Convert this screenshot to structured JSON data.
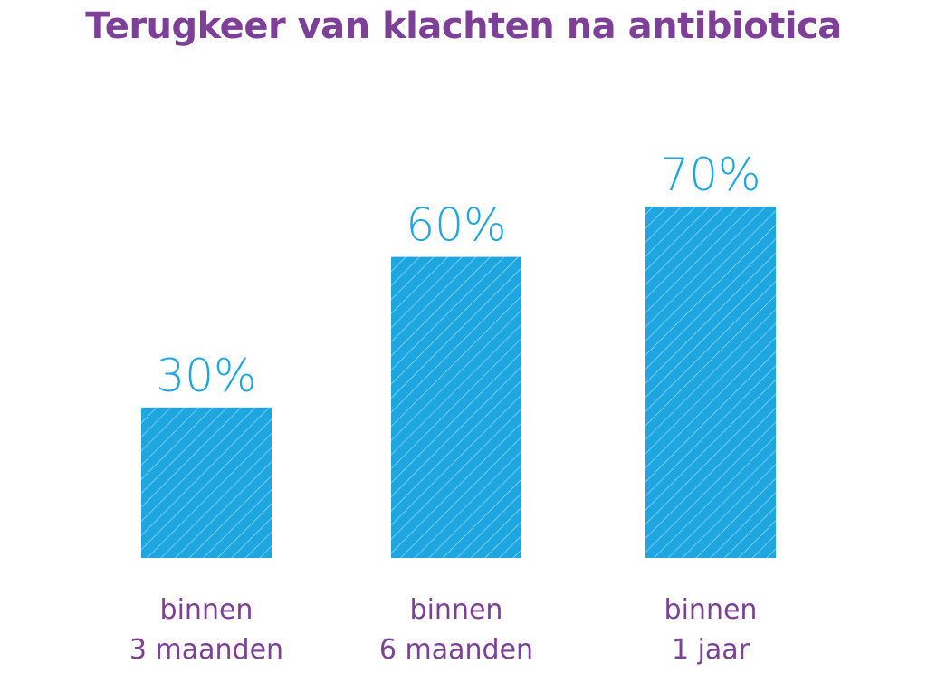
{
  "chart_data": {
    "type": "bar",
    "title": "Terugkeer van klachten na antibiotica",
    "categories": [
      [
        "binnen",
        "3 maanden"
      ],
      [
        "binnen",
        "6 maanden"
      ],
      [
        "binnen",
        "1 jaar"
      ]
    ],
    "values": [
      30,
      60,
      70
    ],
    "value_labels": [
      "30%",
      "60%",
      "70%"
    ],
    "ylim": [
      0,
      100
    ],
    "grid": false,
    "legend": "none",
    "colors": {
      "bar": "#1ea6e0",
      "hatch": "#8fd3f2",
      "value_label": "#1ea6e0",
      "category_label": "#7e3f98",
      "title": "#7e3f98"
    }
  }
}
